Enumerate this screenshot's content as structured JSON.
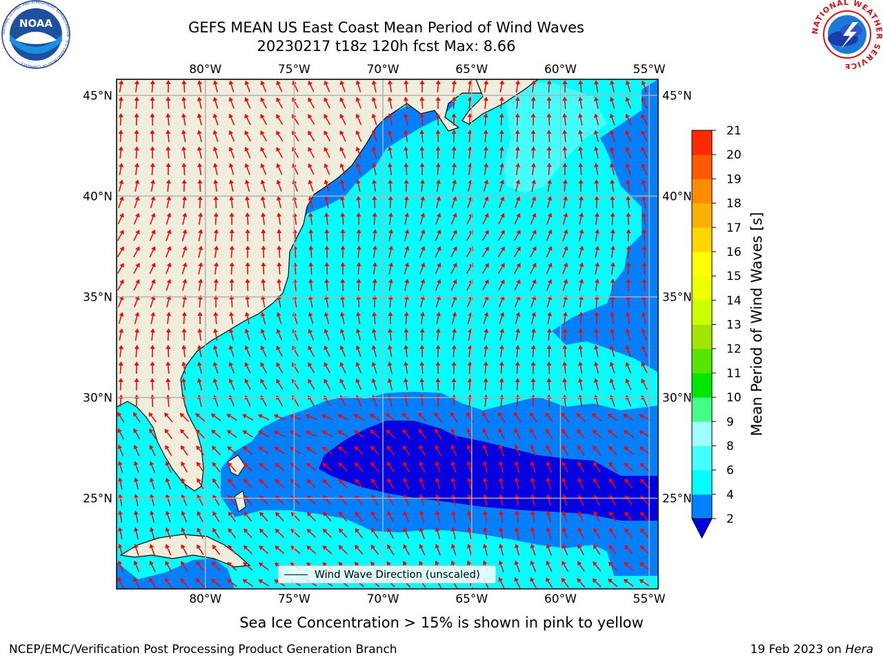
{
  "title": {
    "line1": "GEFS MEAN US East Coast Mean Period of Wind Waves",
    "line2": "20230217 t18z 120h fcst   Max: 8.66"
  },
  "map": {
    "lon_range": [
      -85,
      -54.5
    ],
    "lat_range": [
      20.5,
      45.8
    ],
    "lon_ticks": [
      "80°W",
      "75°W",
      "70°W",
      "65°W",
      "60°W",
      "55°W"
    ],
    "lon_tick_values": [
      -80,
      -75,
      -70,
      -65,
      -60,
      -55
    ],
    "lat_ticks": [
      "45°N",
      "40°N",
      "35°N",
      "30°N",
      "25°N"
    ],
    "lat_tick_values": [
      45,
      40,
      35,
      30,
      25
    ],
    "grid": true,
    "arrow_color": "#ff0000",
    "land_color": "#efeedc",
    "period_levels": [
      2,
      4,
      6,
      8
    ],
    "period_colors": [
      "#0000e0",
      "#0080ff",
      "#00ffff",
      "#44ffff"
    ]
  },
  "legend": {
    "label": "Wind Wave Direction (unscaled)"
  },
  "colorbar": {
    "label": "Mean Period of Wind Waves [s]",
    "ticks": [
      "2",
      "4",
      "6",
      "8",
      "9",
      "10",
      "11",
      "12",
      "13",
      "14",
      "15",
      "16",
      "17",
      "18",
      "19",
      "20",
      "21"
    ],
    "colors": [
      "#0080ff",
      "#00ffff",
      "#44ffff",
      "#a0ffff",
      "#44ff88",
      "#00e600",
      "#55e600",
      "#a0e600",
      "#ccff00",
      "#eeff00",
      "#ffff00",
      "#ffd700",
      "#ffb000",
      "#ff8c00",
      "#ff5a00",
      "#ff2a00"
    ],
    "extend_color": "#0000e0"
  },
  "footer": {
    "note": "Sea Ice Concentration > 15% is shown in pink to yellow",
    "branch": "NCEP/EMC/Verification Post Processing Product Generation Branch",
    "date": "19 Feb 2023 on",
    "machine": "Hera"
  },
  "logos": {
    "noaa_text": "NOAA",
    "noaa_ring": "NATIONAL OCEANIC AND ATMOSPHERIC ADMINISTRATION · U.S. DEPARTMENT OF COMMERCE",
    "nws_ring": "NATIONAL WEATHER SERVICE"
  }
}
